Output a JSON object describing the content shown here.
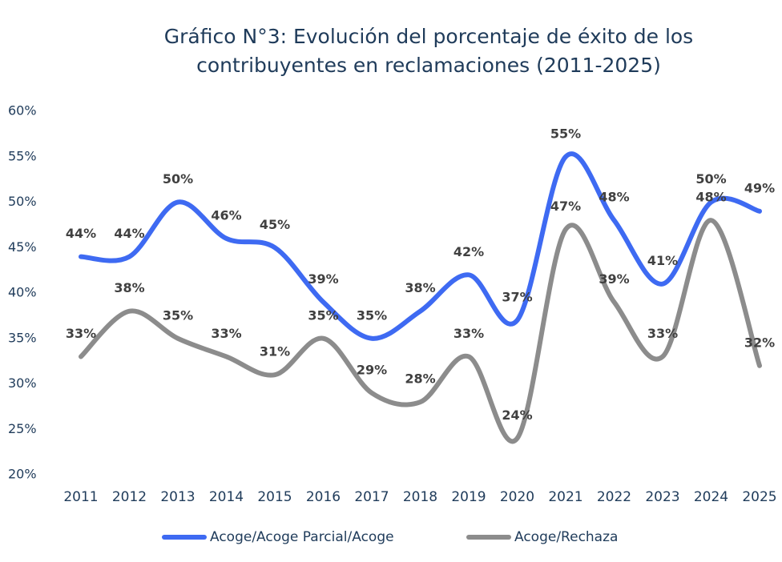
{
  "chart_data": {
    "type": "line",
    "title": [
      "Gráfico N°3: Evolución del porcentaje de éxito de los",
      "contribuyentes en reclamaciones (2011-2025)"
    ],
    "categories": [
      "2011",
      "2012",
      "2013",
      "2014",
      "2015",
      "2016",
      "2017",
      "2018",
      "2019",
      "2020",
      "2021",
      "2022",
      "2023",
      "2024",
      "2025"
    ],
    "series": [
      {
        "name": "Acoge/Acoge Parcial/Acoge",
        "color": "#3e6af2",
        "values": [
          44,
          44,
          50,
          46,
          45,
          39,
          35,
          38,
          42,
          37,
          55,
          48,
          41,
          50,
          49
        ],
        "value_labels": [
          "44%",
          "44%",
          "50%",
          "46%",
          "45%",
          "39%",
          "35%",
          "38%",
          "42%",
          "37%",
          "55%",
          "48%",
          "41%",
          "50%",
          "49%"
        ]
      },
      {
        "name": "Acoge/Rechaza",
        "color": "#8c8c8c",
        "values": [
          33,
          38,
          35,
          33,
          31,
          35,
          29,
          28,
          33,
          24,
          47,
          39,
          33,
          48,
          32
        ],
        "value_labels": [
          "33%",
          "38%",
          "35%",
          "33%",
          "31%",
          "35%",
          "29%",
          "28%",
          "33%",
          "24%",
          "47%",
          "39%",
          "33%",
          "48%",
          "32%"
        ]
      }
    ],
    "ylim": [
      20,
      60
    ],
    "yticks": [
      {
        "value": 20,
        "label": "20%"
      },
      {
        "value": 25,
        "label": "25%"
      },
      {
        "value": 30,
        "label": "30%"
      },
      {
        "value": 35,
        "label": "35%"
      },
      {
        "value": 40,
        "label": "40%"
      },
      {
        "value": 45,
        "label": "45%"
      },
      {
        "value": 50,
        "label": "50%"
      },
      {
        "value": 55,
        "label": "55%"
      },
      {
        "value": 60,
        "label": "60%"
      }
    ],
    "legend": "bottom"
  }
}
